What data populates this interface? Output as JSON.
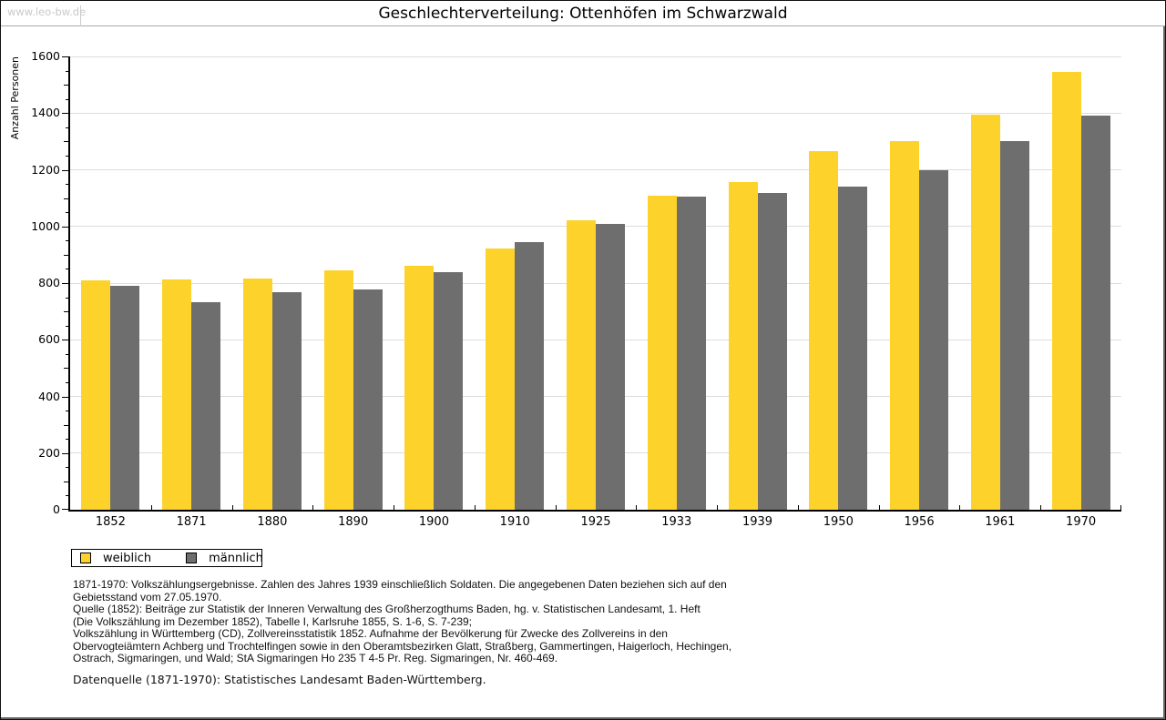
{
  "page": {
    "watermark": "www.leo-bw.de",
    "title": "Geschlechterverteilung: Ottenhöfen im Schwarzwald"
  },
  "chart_data": {
    "type": "bar",
    "title": "Geschlechterverteilung: Ottenhöfen im Schwarzwald",
    "xlabel": "",
    "ylabel": "Anzahl Personen",
    "ylim": [
      0,
      1600
    ],
    "ytick_major_step": 200,
    "ytick_minor_step": 50,
    "grid": true,
    "legend_position": "bottom-left",
    "categories": [
      "1852",
      "1871",
      "1880",
      "1890",
      "1900",
      "1910",
      "1925",
      "1933",
      "1939",
      "1950",
      "1956",
      "1961",
      "1970"
    ],
    "series": [
      {
        "name": "weiblich",
        "color": "#FDD32B",
        "values": [
          810,
          812,
          816,
          846,
          861,
          921,
          1022,
          1108,
          1158,
          1266,
          1300,
          1396,
          1546
        ]
      },
      {
        "name": "männlich",
        "color": "#6E6E6E",
        "values": [
          791,
          731,
          768,
          778,
          837,
          944,
          1009,
          1104,
          1119,
          1142,
          1200,
          1302,
          1390
        ]
      }
    ]
  },
  "colors": {
    "female_bar": "#FDD32B",
    "male_bar": "#6E6E6E",
    "gridline": "#dddddd",
    "watermark": "#c9c9c9"
  },
  "footnotes": {
    "lines": [
      "1871-1970: Volkszählungsergebnisse. Zahlen des Jahres 1939 einschließlich Soldaten. Die angegebenen Daten beziehen sich auf den",
      "Gebietsstand vom 27.05.1970.",
      "Quelle (1852): Beiträge zur Statistik der Inneren Verwaltung des Großherzogthums Baden, hg. v. Statistischen Landesamt, 1. Heft",
      "(Die Volkszählung im Dezember 1852), Tabelle I, Karlsruhe 1855, S. 1-6, S. 7-239;",
      "Volkszählung in Württemberg (CD), Zollvereinsstatistik 1852. Aufnahme der Bevölkerung für Zwecke des Zollvereins in den",
      "Obervogteiämtern Achberg und Trochtelfingen sowie in den Oberamtsbezirken Glatt, Straßberg, Gammertingen, Haigerloch, Hechingen,",
      "Ostrach, Sigmaringen, und Wald; StA Sigmaringen Ho 235 T 4-5 Pr. Reg. Sigmaringen, Nr. 460-469."
    ],
    "source_line": "Datenquelle (1871-1970): Statistisches Landesamt Baden-Württemberg."
  }
}
